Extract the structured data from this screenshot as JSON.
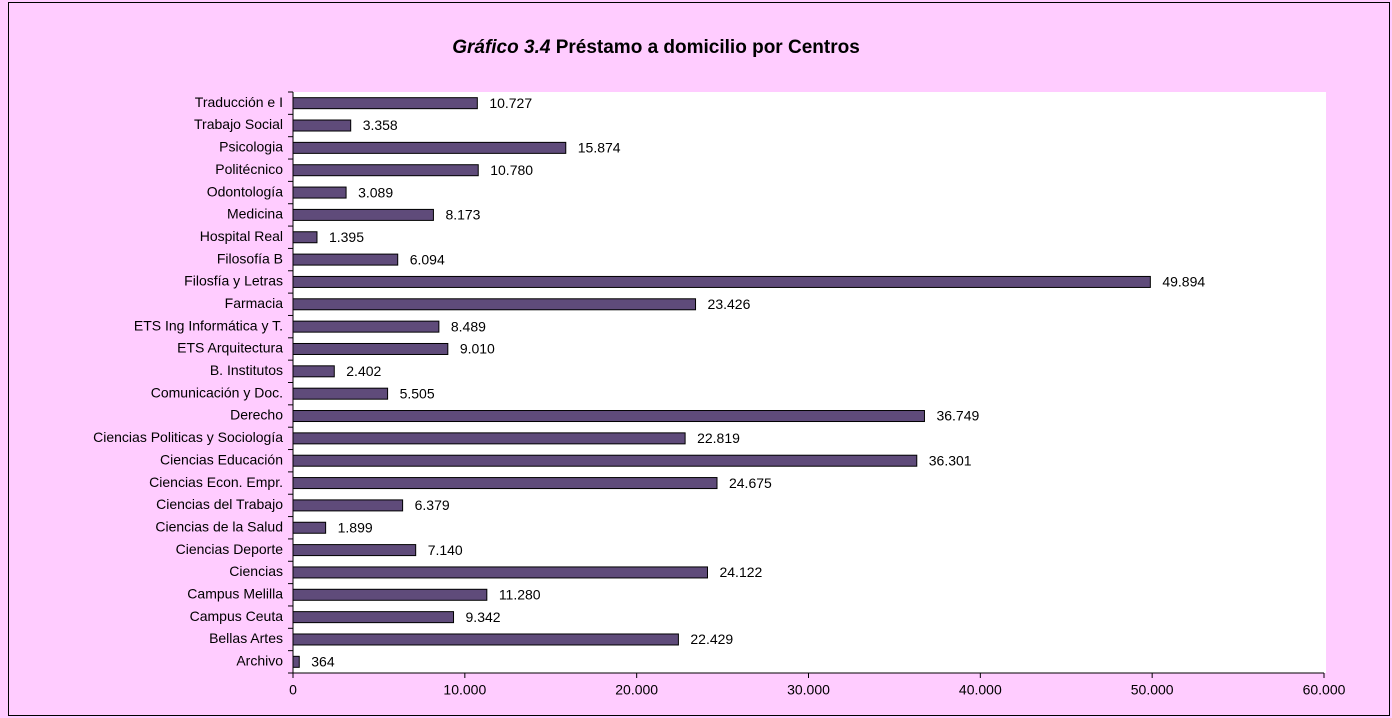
{
  "chart_data": {
    "type": "barh",
    "title_number": "Gráfico 3.4",
    "title": "Préstamo a domicilio por Centros",
    "categories": [
      "Traducción e I",
      "Trabajo Social",
      "Psicologia",
      "Politécnico",
      "Odontología",
      "Medicina",
      "Hospital Real",
      "Filosofía B",
      "Filosfía y Letras",
      "Farmacia",
      "ETS Ing Informática y T.",
      "ETS Arquitectura",
      "B. Institutos",
      "Comunicación y Doc.",
      "Derecho",
      "Ciencias Politicas y Sociología",
      "Ciencias Educación",
      "Ciencias Econ. Empr.",
      "Ciencias del Trabajo",
      "Ciencias de la Salud",
      "Ciencias Deporte",
      "Ciencias",
      "Campus Melilla",
      "Campus Ceuta",
      "Bellas Artes",
      "Archivo"
    ],
    "values": [
      10727,
      3358,
      15874,
      10780,
      3089,
      8173,
      1395,
      6094,
      49894,
      23426,
      8489,
      9010,
      2402,
      5505,
      36749,
      22819,
      36301,
      24675,
      6379,
      1899,
      7140,
      24122,
      11280,
      9342,
      22429,
      364
    ],
    "value_labels": [
      "10.727",
      "3.358",
      "15.874",
      "10.780",
      "3.089",
      "8.173",
      "1.395",
      "6.094",
      "49.894",
      "23.426",
      "8.489",
      "9.010",
      "2.402",
      "5.505",
      "36.749",
      "22.819",
      "36.301",
      "24.675",
      "6.379",
      "1.899",
      "7.140",
      "24.122",
      "11.280",
      "9.342",
      "22.429",
      "364"
    ],
    "color": "#5f4b7a",
    "xlim": [
      0,
      60000
    ],
    "xticks": [
      0,
      {
        "value": 10000,
        "label": "10.000"
      },
      {
        "value": 20000,
        "label": "20.000"
      },
      {
        "value": 30000,
        "label": "30.000"
      },
      {
        "value": 40000,
        "label": "40.000"
      },
      {
        "value": 50000,
        "label": "50.000"
      },
      {
        "value": 60000,
        "label": "60.000"
      }
    ]
  }
}
